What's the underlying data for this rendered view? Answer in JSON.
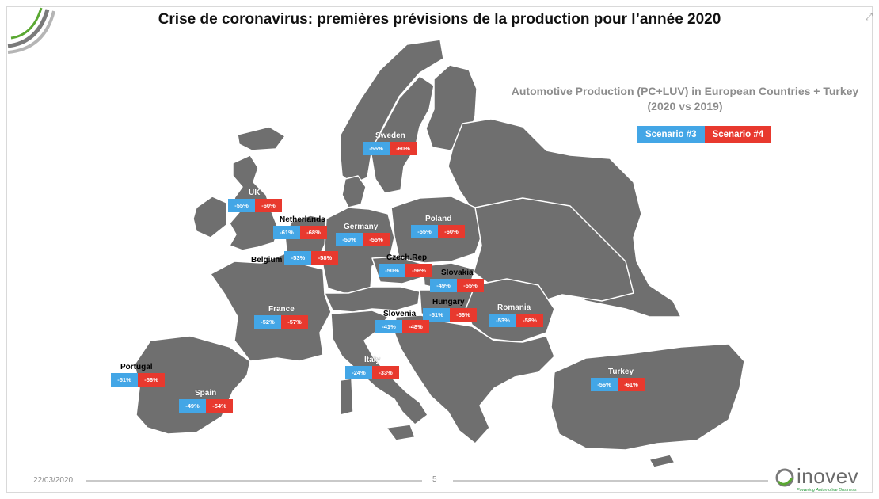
{
  "title": "Crise de coronavirus: premières prévisions de la production pour l’année 2020",
  "subtitle_line1": "Automotive Production (PC+LUV) in European Countries + Turkey",
  "subtitle_line2": "(2020 vs 2019)",
  "legend": {
    "s3": "Scenario #3",
    "s4": "Scenario #4"
  },
  "colors": {
    "scenario3": "#43a6e6",
    "scenario4": "#e8392e",
    "land": "#6f6f6f",
    "borders": "#ffffff"
  },
  "countries": {
    "sweden": {
      "name": "Sweden",
      "s3": "-55%",
      "s4": "-60%"
    },
    "uk": {
      "name": "UK",
      "s3": "-55%",
      "s4": "-60%"
    },
    "netherlands": {
      "name": "Netherlands",
      "s3": "-61%",
      "s4": "-68%"
    },
    "germany": {
      "name": "Germany",
      "s3": "-50%",
      "s4": "-55%"
    },
    "poland": {
      "name": "Poland",
      "s3": "-55%",
      "s4": "-60%"
    },
    "belgium": {
      "name": "Belgium",
      "s3": "-53%",
      "s4": "-58%"
    },
    "czech": {
      "name": "Czech.Rep",
      "s3": "-50%",
      "s4": "-56%"
    },
    "slovakia": {
      "name": "Slovakia",
      "s3": "-49%",
      "s4": "-55%"
    },
    "france": {
      "name": "France",
      "s3": "-52%",
      "s4": "-57%"
    },
    "hungary": {
      "name": "Hungary",
      "s3": "-51%",
      "s4": "-56%"
    },
    "romania": {
      "name": "Romania",
      "s3": "-53%",
      "s4": "-58%"
    },
    "slovenia": {
      "name": "Slovenia",
      "s3": "-41%",
      "s4": "-48%"
    },
    "italy": {
      "name": "Italy",
      "s3": "-24%",
      "s4": "-33%"
    },
    "portugal": {
      "name": "Portugal",
      "s3": "-51%",
      "s4": "-56%"
    },
    "spain": {
      "name": "Spain",
      "s3": "-49%",
      "s4": "-54%"
    },
    "turkey": {
      "name": "Turkey",
      "s3": "-56%",
      "s4": "-61%"
    }
  },
  "footer": {
    "date": "22/03/2020",
    "page": "5"
  },
  "logo": {
    "text": "inovev",
    "tagline": "Powering Automotive Business"
  }
}
